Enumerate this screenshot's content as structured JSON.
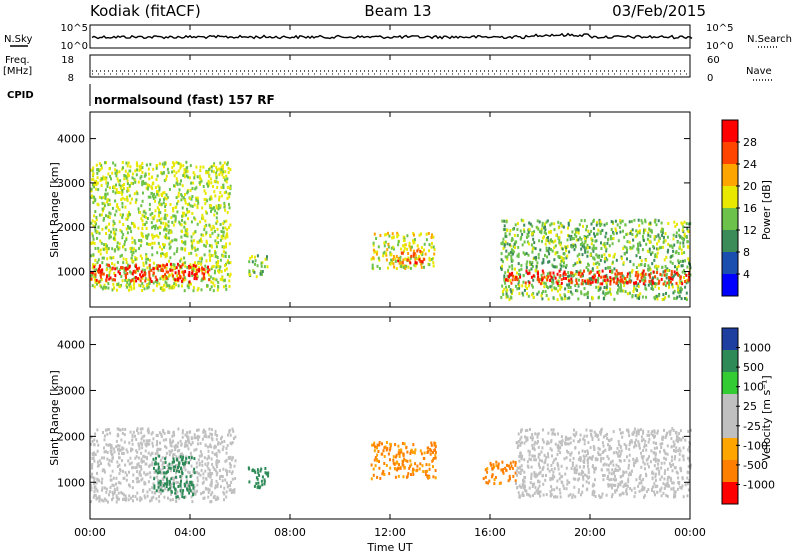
{
  "header": {
    "station": "Kodiak (fitACF)",
    "beam": "Beam 13",
    "date": "03/Feb/2015"
  },
  "top_panel": {
    "nsky_label": "N.Sky",
    "nsky_ticks": [
      "10^5",
      "10^0"
    ],
    "nsearch_label": "N.Search",
    "nsearch_ticks": [
      "10^5",
      "10^0"
    ]
  },
  "freq_panel": {
    "freq_label_line1": "Freq.",
    "freq_label_line2": "[MHz]",
    "freq_ticks": [
      "18",
      "8"
    ],
    "nave_label": "Nave",
    "nave_ticks": [
      "60",
      "0"
    ]
  },
  "cpid": {
    "label": "CPID",
    "value": "normalsound (fast) 157 RF"
  },
  "colors": {
    "power_scale": [
      "#0000ff",
      "#1a4fb0",
      "#3c8c5a",
      "#6cc24a",
      "#e8e800",
      "#ffa500",
      "#ff4500",
      "#ff0000"
    ],
    "velocity_scale": [
      "#ff0000",
      "#ff7f00",
      "#ffa500",
      "#c0c0c0",
      "#c0c0c0",
      "#33cc33",
      "#2e8b57",
      "#1f3fa0"
    ],
    "ground_scatter": "#c0c0c0"
  },
  "chart_data": [
    {
      "type": "heatmap",
      "panel": "power",
      "ylabel": "Slant Range [km]",
      "xlim": [
        "00:00",
        "24:00"
      ],
      "ylim": [
        200,
        4600
      ],
      "yticks": [
        "4000",
        "3000",
        "2000",
        "1000"
      ],
      "colorbar_label": "Power [dB]",
      "colorbar_ticks": [
        "28",
        "24",
        "20",
        "16",
        "12",
        "8",
        "4"
      ],
      "colorbar_range": [
        0,
        32
      ],
      "regions": [
        {
          "t0": 0.0,
          "t1": 5.6,
          "r0": 600,
          "r1": 3500,
          "power": 16
        },
        {
          "t0": 0.0,
          "t1": 4.8,
          "r0": 800,
          "r1": 1200,
          "power": 28
        },
        {
          "t0": 6.3,
          "t1": 7.1,
          "r0": 900,
          "r1": 1400,
          "power": 14
        },
        {
          "t0": 11.2,
          "t1": 13.8,
          "r0": 1100,
          "r1": 1900,
          "power": 18
        },
        {
          "t0": 12.2,
          "t1": 13.4,
          "r0": 1200,
          "r1": 1500,
          "power": 26
        },
        {
          "t0": 16.4,
          "t1": 24.0,
          "r0": 400,
          "r1": 2200,
          "power": 14
        },
        {
          "t0": 16.5,
          "t1": 24.0,
          "r0": 750,
          "r1": 1050,
          "power": 28
        }
      ]
    },
    {
      "type": "heatmap",
      "panel": "velocity",
      "ylabel": "Slant Range [km]",
      "xlabel": "Time UT",
      "xlim": [
        "00:00",
        "24:00"
      ],
      "ylim": [
        200,
        4600
      ],
      "yticks": [
        "4000",
        "3000",
        "2000",
        "1000"
      ],
      "xticks": [
        "00:00",
        "04:00",
        "08:00",
        "12:00",
        "16:00",
        "20:00",
        "00:00"
      ],
      "colorbar_label": "Velocity [m s⁻¹]",
      "colorbar_ticks": [
        "1000",
        "500",
        "100",
        "25",
        "-25",
        "-100",
        "-500",
        "-1000"
      ],
      "regions": [
        {
          "t0": 0.0,
          "t1": 5.8,
          "r0": 600,
          "r1": 2200,
          "velocity": 0,
          "ground": true
        },
        {
          "t0": 2.5,
          "t1": 4.2,
          "r0": 700,
          "r1": 1600,
          "velocity": 300
        },
        {
          "t0": 6.3,
          "t1": 7.1,
          "r0": 900,
          "r1": 1400,
          "velocity": 400
        },
        {
          "t0": 11.2,
          "t1": 13.8,
          "r0": 1100,
          "r1": 1900,
          "velocity": -120
        },
        {
          "t0": 15.7,
          "t1": 17.0,
          "r0": 1000,
          "r1": 1500,
          "velocity": -150
        },
        {
          "t0": 17.0,
          "t1": 24.0,
          "r0": 700,
          "r1": 2200,
          "velocity": 0,
          "ground": true
        }
      ]
    }
  ]
}
